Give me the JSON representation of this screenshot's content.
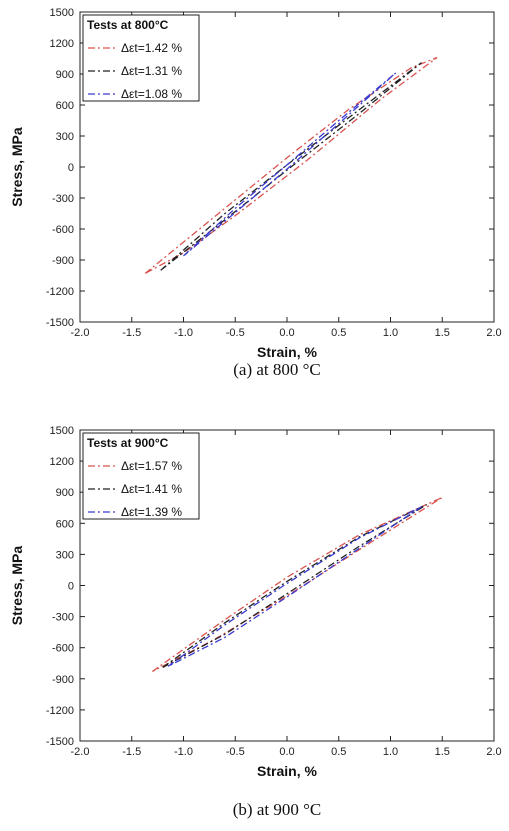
{
  "chart_data": [
    {
      "type": "line",
      "panel_caption": "(a) at 800 °C",
      "legend_title": "Tests at 800°C",
      "xlabel": "Strain, %",
      "ylabel": "Stress, MPa",
      "xlim": [
        -2.0,
        2.0
      ],
      "ylim": [
        -1500,
        1500
      ],
      "xticks": [
        "-2.0",
        "-1.5",
        "-1.0",
        "-0.5",
        "0.0",
        "0.5",
        "1.0",
        "1.5",
        "2.0"
      ],
      "yticks": [
        "1500",
        "1200",
        "900",
        "600",
        "300",
        "0",
        "-300",
        "-600",
        "-900",
        "-1200",
        "-1500"
      ],
      "legend_position": "top-left",
      "series": [
        {
          "name": "Δεt=1.42 %",
          "color": "#d9534f",
          "dash": "dashdot",
          "upper": [
            [
              -1.37,
              -1030
            ],
            [
              -0.6,
              -400
            ],
            [
              0.0,
              90
            ],
            [
              0.6,
              560
            ],
            [
              1.2,
              960
            ],
            [
              1.45,
              1060
            ]
          ],
          "lower": [
            [
              1.45,
              1060
            ],
            [
              0.9,
              650
            ],
            [
              0.2,
              70
            ],
            [
              -0.5,
              -470
            ],
            [
              -1.0,
              -830
            ],
            [
              -1.37,
              -1030
            ]
          ]
        },
        {
          "name": "Δεt=1.31 %",
          "color": "#222222",
          "dash": "dashdot",
          "upper": [
            [
              -1.22,
              -1000
            ],
            [
              -0.6,
              -450
            ],
            [
              0.0,
              20
            ],
            [
              0.6,
              480
            ],
            [
              1.3,
              1010
            ]
          ],
          "lower": [
            [
              1.3,
              1010
            ],
            [
              0.7,
              520
            ],
            [
              0.0,
              -30
            ],
            [
              -0.6,
              -510
            ],
            [
              -1.22,
              -1000
            ]
          ]
        },
        {
          "name": "Δεt=1.08 %",
          "color": "#3a3acf",
          "dash": "dashdot",
          "upper": [
            [
              -1.0,
              -860
            ],
            [
              -0.5,
              -400
            ],
            [
              0.0,
              20
            ],
            [
              0.5,
              450
            ],
            [
              1.05,
              910
            ]
          ],
          "lower": [
            [
              1.05,
              910
            ],
            [
              0.5,
              420
            ],
            [
              0.0,
              -20
            ],
            [
              -0.5,
              -440
            ],
            [
              -1.0,
              -860
            ]
          ]
        }
      ]
    },
    {
      "type": "line",
      "panel_caption": "(b) at 900 °C",
      "legend_title": "Tests at 900°C",
      "xlabel": "Strain, %",
      "ylabel": "Stress, MPa",
      "xlim": [
        -2.0,
        2.0
      ],
      "ylim": [
        -1500,
        1500
      ],
      "xticks": [
        "-2.0",
        "-1.5",
        "-1.0",
        "-0.5",
        "0.0",
        "0.5",
        "1.0",
        "1.5",
        "2.0"
      ],
      "yticks": [
        "1500",
        "1200",
        "900",
        "600",
        "300",
        "0",
        "-300",
        "-600",
        "-900",
        "-1200",
        "-1500"
      ],
      "legend_position": "top-left",
      "series": [
        {
          "name": "Δεt=1.57 %",
          "color": "#d9534f",
          "dash": "dashdot",
          "upper": [
            [
              -1.3,
              -830
            ],
            [
              -0.6,
              -330
            ],
            [
              0.0,
              80
            ],
            [
              0.7,
              490
            ],
            [
              1.5,
              850
            ]
          ],
          "lower": [
            [
              1.5,
              850
            ],
            [
              0.8,
              410
            ],
            [
              0.0,
              -100
            ],
            [
              -0.7,
              -520
            ],
            [
              -1.3,
              -830
            ]
          ]
        },
        {
          "name": "Δεt=1.41 %",
          "color": "#222222",
          "dash": "dashdot",
          "upper": [
            [
              -1.2,
              -790
            ],
            [
              -0.6,
              -360
            ],
            [
              0.0,
              40
            ],
            [
              0.7,
              470
            ],
            [
              1.35,
              780
            ]
          ],
          "lower": [
            [
              1.35,
              780
            ],
            [
              0.7,
              380
            ],
            [
              0.0,
              -80
            ],
            [
              -0.6,
              -470
            ],
            [
              -1.2,
              -790
            ]
          ]
        },
        {
          "name": "Δεt=1.39 %",
          "color": "#3a3acf",
          "dash": "dashdot",
          "upper": [
            [
              -1.15,
              -780
            ],
            [
              -0.6,
              -380
            ],
            [
              0.0,
              20
            ],
            [
              0.7,
              460
            ],
            [
              1.3,
              760
            ]
          ],
          "lower": [
            [
              1.3,
              760
            ],
            [
              0.7,
              360
            ],
            [
              0.0,
              -110
            ],
            [
              -0.6,
              -500
            ],
            [
              -1.15,
              -780
            ]
          ]
        }
      ]
    }
  ]
}
